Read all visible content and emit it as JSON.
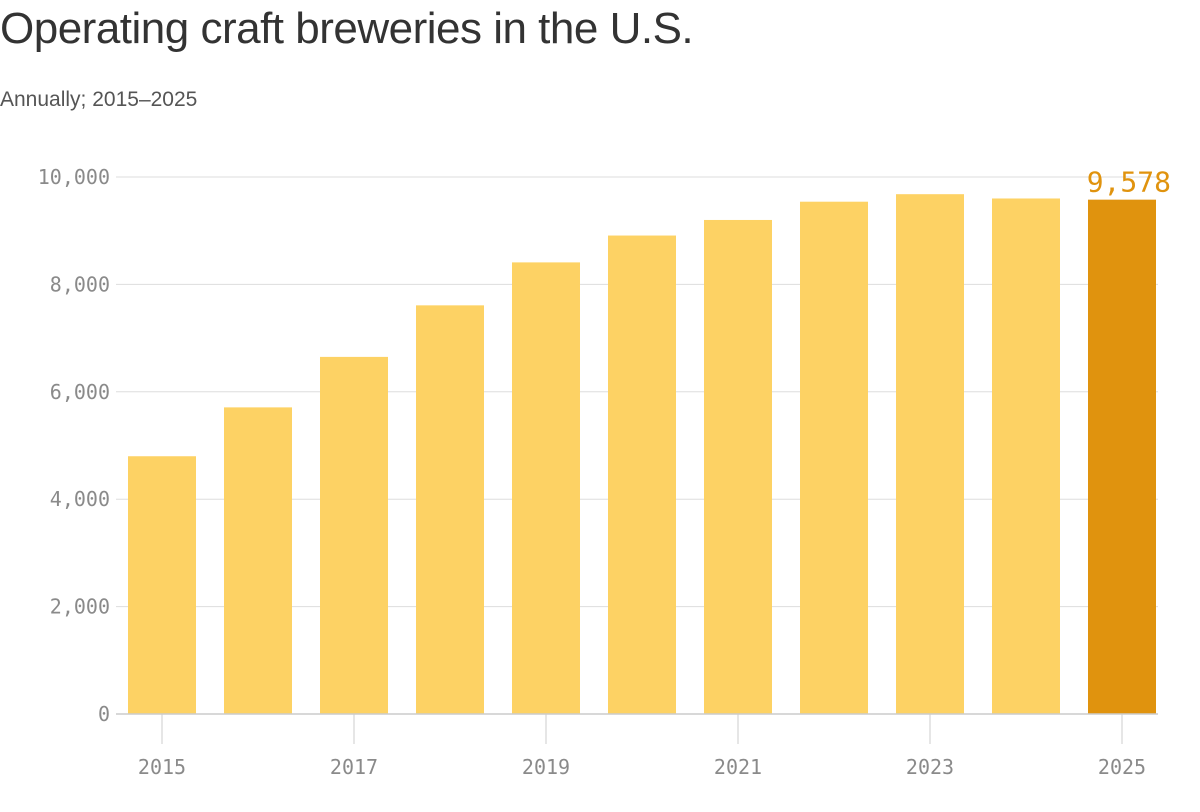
{
  "title": "Operating craft breweries in the U.S.",
  "subtitle": "Annually; 2015–2025",
  "colors": {
    "bar": "#fdd264",
    "highlight": "#e0930e",
    "grid": "#dddddd",
    "axis": "#cccccc",
    "tick_text": "#8a8a8a"
  },
  "chart_data": {
    "type": "bar",
    "title": "Operating craft breweries in the U.S.",
    "subtitle": "Annually; 2015–2025",
    "xlabel": "",
    "ylabel": "",
    "categories": [
      "2015",
      "2016",
      "2017",
      "2018",
      "2019",
      "2020",
      "2021",
      "2022",
      "2023",
      "2024",
      "2025"
    ],
    "values": [
      4800,
      5710,
      6650,
      7610,
      8410,
      8910,
      9200,
      9540,
      9680,
      9600,
      9578
    ],
    "x_tick_labels": [
      "2015",
      "2017",
      "2019",
      "2021",
      "2023",
      "2025"
    ],
    "y_ticks": [
      0,
      2000,
      4000,
      6000,
      8000,
      10000
    ],
    "y_tick_labels": [
      "0",
      "2,000",
      "4,000",
      "6,000",
      "8,000",
      "10,000"
    ],
    "ylim": [
      0,
      10000
    ],
    "grid": true,
    "highlighted_category": "2025",
    "annotation": "9,578"
  }
}
